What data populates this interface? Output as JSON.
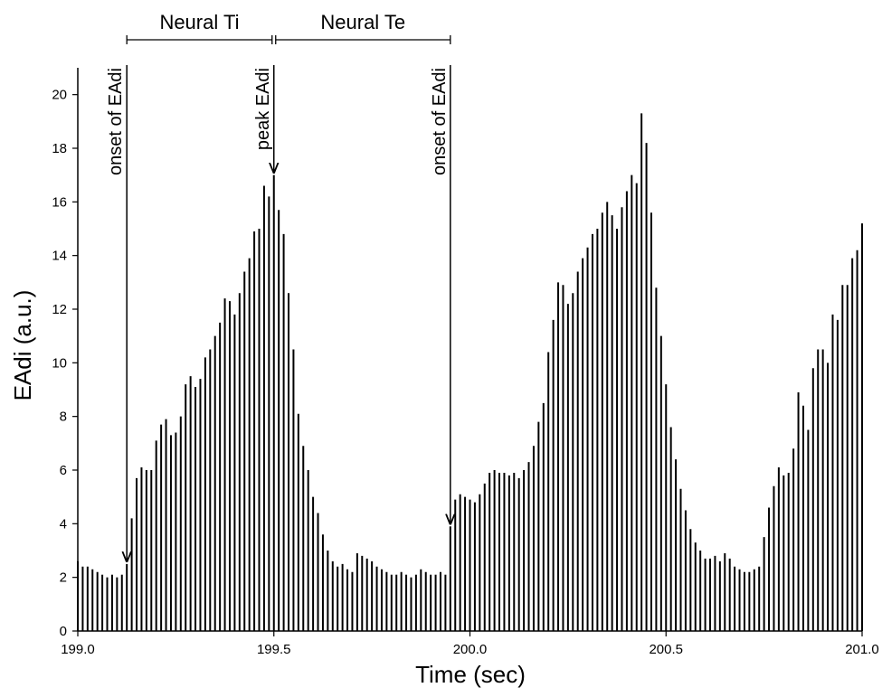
{
  "chart_data": {
    "type": "stem",
    "xlabel": "Time (sec)",
    "ylabel": "EAdi (a.u.)",
    "color": "#000000",
    "xlim": [
      199,
      201
    ],
    "ylim": [
      0,
      21
    ],
    "xticks": [
      {
        "value": 199,
        "label": "199.0"
      },
      199.5,
      {
        "value": 200,
        "label": "200.0"
      },
      200.5,
      {
        "value": 201,
        "label": "201.0"
      }
    ],
    "yticks": [
      0,
      2,
      4,
      6,
      8,
      10,
      12,
      14,
      16,
      18,
      20
    ],
    "x": [
      199,
      199.0125,
      199.025,
      199.0375,
      199.05,
      199.0625,
      199.075,
      199.0875,
      199.1,
      199.1125,
      199.125,
      199.1375,
      199.15,
      199.1625,
      199.175,
      199.1875,
      199.2,
      199.2125,
      199.225,
      199.2375,
      199.25,
      199.2625,
      199.275,
      199.2875,
      199.3,
      199.3125,
      199.325,
      199.3375,
      199.35,
      199.3625,
      199.375,
      199.3875,
      199.4,
      199.4125,
      199.425,
      199.4375,
      199.45,
      199.4625,
      199.475,
      199.4875,
      199.5,
      199.5125,
      199.525,
      199.5375,
      199.55,
      199.5625,
      199.575,
      199.5875,
      199.6,
      199.6125,
      199.625,
      199.6375,
      199.65,
      199.6625,
      199.675,
      199.6875,
      199.7,
      199.7125,
      199.725,
      199.7375,
      199.75,
      199.7625,
      199.775,
      199.7875,
      199.8,
      199.8125,
      199.825,
      199.8375,
      199.85,
      199.8625,
      199.875,
      199.8875,
      199.9,
      199.9125,
      199.925,
      199.9375,
      199.95,
      199.9625,
      199.975,
      199.9875,
      200,
      200.0125,
      200.025,
      200.0375,
      200.05,
      200.0625,
      200.075,
      200.0875,
      200.1,
      200.1125,
      200.125,
      200.1375,
      200.15,
      200.1625,
      200.175,
      200.1875,
      200.2,
      200.2125,
      200.225,
      200.2375,
      200.25,
      200.2625,
      200.275,
      200.2875,
      200.3,
      200.3125,
      200.325,
      200.3375,
      200.35,
      200.3625,
      200.375,
      200.3875,
      200.4,
      200.4125,
      200.425,
      200.4375,
      200.45,
      200.4625,
      200.475,
      200.4875,
      200.5,
      200.5125,
      200.525,
      200.5375,
      200.55,
      200.5625,
      200.575,
      200.5875,
      200.6,
      200.6125,
      200.625,
      200.6375,
      200.65,
      200.6625,
      200.675,
      200.6875,
      200.7,
      200.7125,
      200.725,
      200.7375,
      200.75,
      200.7625,
      200.775,
      200.7875,
      200.8,
      200.8125,
      200.825,
      200.8375,
      200.85,
      200.8625,
      200.875,
      200.8875,
      200.9,
      200.9125,
      200.925,
      200.9375,
      200.95,
      200.9625,
      200.975,
      200.9875,
      201
    ],
    "values": [
      2.6,
      2.4,
      2.4,
      2.3,
      2.2,
      2.1,
      2.0,
      2.1,
      2.0,
      2.1,
      2.5,
      4.2,
      5.7,
      6.1,
      6.0,
      6.0,
      7.1,
      7.7,
      7.9,
      7.3,
      7.4,
      8.0,
      9.2,
      9.5,
      9.1,
      9.4,
      10.2,
      10.5,
      11.0,
      11.5,
      12.4,
      12.3,
      11.8,
      12.6,
      13.4,
      13.9,
      14.9,
      15.0,
      16.6,
      16.2,
      17.0,
      15.7,
      14.8,
      12.6,
      10.5,
      8.1,
      6.9,
      6.0,
      5.0,
      4.4,
      3.6,
      3.0,
      2.6,
      2.4,
      2.5,
      2.3,
      2.2,
      2.9,
      2.8,
      2.7,
      2.6,
      2.4,
      2.3,
      2.2,
      2.1,
      2.1,
      2.2,
      2.1,
      2.0,
      2.1,
      2.3,
      2.2,
      2.1,
      2.1,
      2.2,
      2.1,
      3.9,
      4.9,
      5.1,
      5.0,
      4.9,
      4.8,
      5.1,
      5.5,
      5.9,
      6.0,
      5.9,
      5.9,
      5.8,
      5.9,
      5.7,
      6.0,
      6.3,
      6.9,
      7.8,
      8.5,
      10.4,
      11.6,
      13.0,
      12.9,
      12.2,
      12.6,
      13.4,
      13.9,
      14.3,
      14.8,
      15.0,
      15.6,
      16.0,
      15.5,
      15.0,
      15.8,
      16.4,
      17.0,
      16.7,
      19.3,
      18.2,
      15.6,
      12.8,
      11.0,
      9.2,
      7.6,
      6.4,
      5.3,
      4.5,
      3.8,
      3.3,
      3.0,
      2.7,
      2.7,
      2.8,
      2.6,
      2.9,
      2.7,
      2.4,
      2.3,
      2.2,
      2.2,
      2.3,
      2.4,
      3.5,
      4.6,
      5.4,
      6.1,
      5.8,
      5.9,
      6.8,
      8.9,
      8.4,
      7.5,
      9.8,
      10.5,
      10.5,
      10.0,
      11.8,
      11.6,
      12.9,
      12.9,
      13.9,
      14.2,
      15.2
    ],
    "annotations": [
      {
        "text": "onset of EAdi",
        "x": 199.125
      },
      {
        "text": "peak EAdi",
        "x": 199.5
      },
      {
        "text": "onset of EAdi",
        "x": 199.95
      }
    ],
    "brackets": [
      {
        "text": "Neural Ti",
        "x": [
          199.125,
          199.5
        ]
      },
      {
        "text": "Neural Te",
        "x": [
          199.5,
          199.95
        ]
      }
    ]
  }
}
